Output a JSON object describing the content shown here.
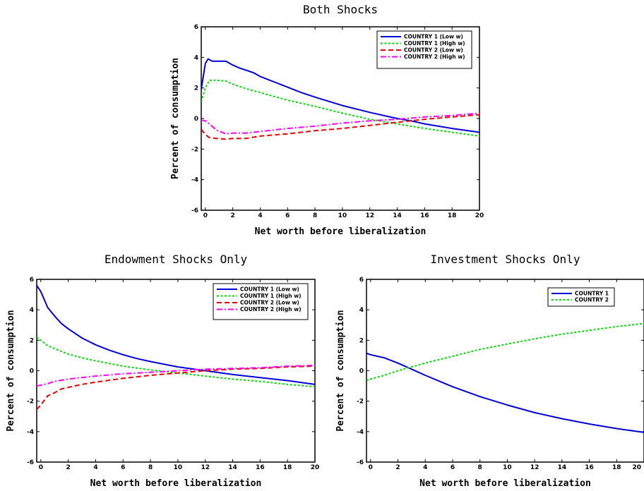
{
  "chart_data": [
    {
      "type": "line",
      "title": "Both Shocks",
      "xlabel": "Net worth before liberalization",
      "ylabel": "Percent of consumption",
      "xlim": [
        -0.3,
        20
      ],
      "ylim": [
        -6,
        6
      ],
      "xticks": [
        0,
        2,
        4,
        6,
        8,
        10,
        12,
        14,
        16,
        18,
        20
      ],
      "yticks": [
        -6,
        -4,
        -2,
        0,
        2,
        4,
        6
      ],
      "legend_position": "top-right",
      "series": [
        {
          "name": "COUNTRY 1 (Low w)",
          "color": "#0000dd",
          "dash": "solid",
          "x": [
            -0.3,
            0.0,
            0.2,
            0.5,
            1.0,
            1.5,
            2.0,
            2.5,
            3.0,
            3.5,
            4.0,
            5.0,
            6.0,
            7.0,
            8.0,
            10.0,
            12.0,
            14.0,
            15.0,
            16.0,
            18.0,
            20.0
          ],
          "y": [
            1.9,
            3.6,
            3.9,
            3.75,
            3.75,
            3.75,
            3.5,
            3.3,
            3.15,
            3.0,
            2.75,
            2.4,
            2.05,
            1.7,
            1.4,
            0.85,
            0.4,
            0.0,
            -0.15,
            -0.35,
            -0.65,
            -0.9
          ]
        },
        {
          "name": "COUNTRY 1 (High w)",
          "color": "#00dd00",
          "dash": "dotted",
          "x": [
            -0.3,
            0.0,
            0.3,
            0.8,
            1.5,
            2.0,
            3.0,
            4.0,
            6.0,
            8.0,
            10.0,
            12.0,
            14.0,
            16.0,
            18.0,
            20.0
          ],
          "y": [
            1.1,
            2.0,
            2.5,
            2.5,
            2.45,
            2.25,
            1.95,
            1.7,
            1.2,
            0.8,
            0.35,
            -0.05,
            -0.35,
            -0.65,
            -0.9,
            -1.15
          ]
        },
        {
          "name": "COUNTRY 2 (Low w)",
          "color": "#ee0000",
          "dash": "dashed",
          "x": [
            -0.3,
            0.0,
            0.3,
            0.8,
            1.5,
            2.0,
            3.0,
            4.0,
            6.0,
            8.0,
            10.0,
            12.0,
            14.0,
            16.0,
            18.0,
            20.0
          ],
          "y": [
            -0.7,
            -1.05,
            -1.25,
            -1.3,
            -1.35,
            -1.3,
            -1.3,
            -1.15,
            -1.0,
            -0.8,
            -0.65,
            -0.45,
            -0.25,
            -0.05,
            0.1,
            0.25
          ]
        },
        {
          "name": "COUNTRY 2 (High w)",
          "color": "#ff00ff",
          "dash": "dashdot",
          "x": [
            -0.3,
            0.0,
            0.3,
            0.8,
            1.5,
            2.0,
            3.0,
            4.0,
            6.0,
            8.0,
            10.0,
            12.0,
            14.0,
            16.0,
            18.0,
            20.0
          ],
          "y": [
            -0.1,
            -0.15,
            -0.35,
            -0.75,
            -1.0,
            -0.95,
            -0.95,
            -0.85,
            -0.65,
            -0.5,
            -0.3,
            -0.15,
            -0.05,
            0.1,
            0.2,
            0.35
          ]
        }
      ]
    },
    {
      "type": "line",
      "title": "Endowment Shocks Only",
      "xlabel": "Net worth before liberalization",
      "ylabel": "Percent of consumption",
      "xlim": [
        -0.3,
        20
      ],
      "ylim": [
        -6,
        6
      ],
      "xticks": [
        0,
        2,
        4,
        6,
        8,
        10,
        12,
        14,
        16,
        18,
        20
      ],
      "yticks": [
        -6,
        -4,
        -2,
        0,
        2,
        4,
        6
      ],
      "legend_position": "top-right",
      "series": [
        {
          "name": "COUNTRY 1 (Low w)",
          "color": "#0000dd",
          "dash": "solid",
          "x": [
            -0.3,
            0.0,
            0.5,
            1.0,
            1.5,
            2.0,
            3.0,
            4.0,
            5.0,
            6.0,
            7.0,
            8.0,
            10.0,
            12.0,
            14.0,
            16.0,
            18.0,
            20.0
          ],
          "y": [
            5.6,
            5.2,
            4.15,
            3.6,
            3.1,
            2.75,
            2.15,
            1.7,
            1.35,
            1.05,
            0.8,
            0.6,
            0.25,
            0.0,
            -0.25,
            -0.45,
            -0.65,
            -0.9
          ]
        },
        {
          "name": "COUNTRY 1 (High w)",
          "color": "#00dd00",
          "dash": "dotted",
          "x": [
            -0.3,
            0.0,
            0.5,
            1.0,
            2.0,
            3.0,
            4.0,
            6.0,
            8.0,
            10.0,
            12.0,
            14.0,
            16.0,
            18.0,
            20.0
          ],
          "y": [
            2.2,
            2.0,
            1.65,
            1.45,
            1.1,
            0.85,
            0.65,
            0.3,
            0.05,
            -0.15,
            -0.35,
            -0.55,
            -0.7,
            -0.9,
            -1.05
          ]
        },
        {
          "name": "COUNTRY 2 (Low w)",
          "color": "#ee0000",
          "dash": "dashed",
          "x": [
            -0.3,
            0.0,
            0.5,
            1.0,
            1.5,
            2.0,
            3.0,
            4.0,
            6.0,
            8.0,
            10.0,
            12.0,
            14.0,
            16.0,
            18.0,
            20.0
          ],
          "y": [
            -2.55,
            -2.25,
            -1.65,
            -1.45,
            -1.2,
            -1.1,
            -0.9,
            -0.75,
            -0.5,
            -0.3,
            -0.15,
            0.0,
            0.1,
            0.15,
            0.25,
            0.3
          ]
        },
        {
          "name": "COUNTRY 2 (High w)",
          "color": "#ff00ff",
          "dash": "dashdot",
          "x": [
            -0.3,
            0.0,
            0.5,
            1.0,
            2.0,
            3.0,
            4.0,
            6.0,
            8.0,
            10.0,
            12.0,
            14.0,
            16.0,
            18.0,
            20.0
          ],
          "y": [
            -1.0,
            -0.95,
            -0.85,
            -0.7,
            -0.55,
            -0.45,
            -0.35,
            -0.2,
            -0.1,
            0.0,
            0.1,
            0.15,
            0.2,
            0.3,
            0.35
          ]
        }
      ]
    },
    {
      "type": "line",
      "title": "Investment Shocks Only",
      "xlabel": "Net worth before liberalization",
      "ylabel": "Percent of consumption",
      "xlim": [
        -0.3,
        20
      ],
      "ylim": [
        -6,
        6
      ],
      "xticks": [
        0,
        2,
        4,
        6,
        8,
        10,
        12,
        14,
        16,
        18,
        20
      ],
      "yticks": [
        -6,
        -4,
        -2,
        0,
        2,
        4,
        6
      ],
      "legend_position": "top-right",
      "series": [
        {
          "name": "COUNTRY 1",
          "color": "#0000dd",
          "dash": "solid",
          "x": [
            -0.3,
            0.0,
            0.5,
            1.0,
            2.0,
            3.0,
            4.0,
            6.0,
            8.0,
            10.0,
            12.0,
            14.0,
            16.0,
            18.0,
            20.0
          ],
          "y": [
            1.15,
            1.05,
            0.95,
            0.85,
            0.5,
            0.1,
            -0.3,
            -1.05,
            -1.7,
            -2.25,
            -2.75,
            -3.15,
            -3.5,
            -3.8,
            -4.05
          ]
        },
        {
          "name": "COUNTRY 2",
          "color": "#00dd00",
          "dash": "dotted",
          "x": [
            -0.3,
            0.0,
            1.0,
            2.0,
            3.0,
            4.0,
            6.0,
            8.0,
            10.0,
            12.0,
            14.0,
            16.0,
            18.0,
            20.0
          ],
          "y": [
            -0.65,
            -0.55,
            -0.3,
            0.0,
            0.25,
            0.5,
            0.95,
            1.4,
            1.75,
            2.1,
            2.4,
            2.65,
            2.9,
            3.1
          ]
        }
      ]
    }
  ]
}
